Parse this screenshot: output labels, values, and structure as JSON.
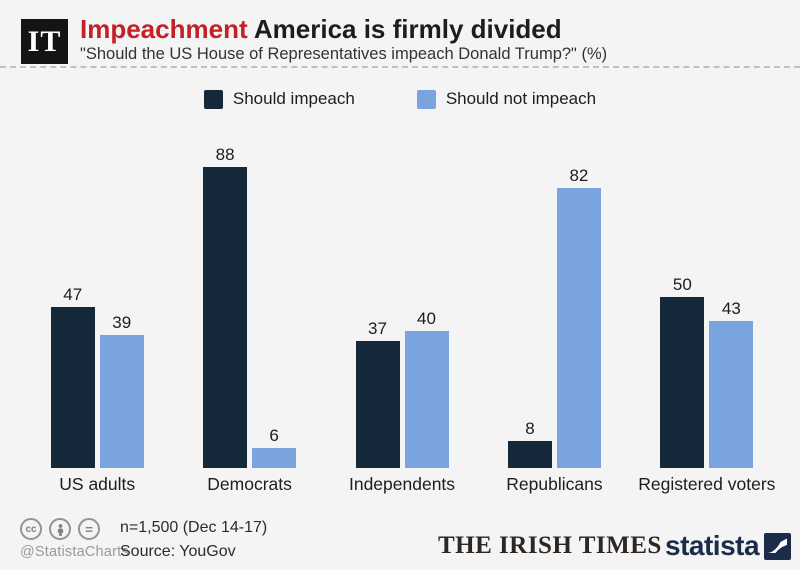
{
  "header": {
    "logo_text": "IT",
    "title_highlight": "Impeachment",
    "title_rest": " America is firmly divided",
    "subtitle": "\"Should the US House of Representatives impeach Donald Trump?\" (%)"
  },
  "chart_data": {
    "type": "bar",
    "categories": [
      "US adults",
      "Democrats",
      "Independents",
      "Republicans",
      "Registered voters"
    ],
    "series": [
      {
        "name": "Should impeach",
        "color": "#14283a",
        "values": [
          47,
          88,
          37,
          8,
          50
        ]
      },
      {
        "name": "Should not impeach",
        "color": "#79a4dd",
        "values": [
          39,
          6,
          40,
          82,
          43
        ]
      }
    ],
    "value_labels": true,
    "ylim": [
      0,
      100
    ],
    "axes": "hidden",
    "grid": false,
    "legend_position": "top-center"
  },
  "footer": {
    "license_icons": [
      "cc-icon",
      "attribution-person-icon",
      "no-derivatives-icon"
    ],
    "handle": "@StatistaCharts",
    "sample": "n=1,500 (Dec 14-17)",
    "source": "Source: YouGov",
    "publisher": "THE IRISH TIMES",
    "brand": "statista"
  },
  "colors": {
    "background": "#f4f4f5",
    "title_highlight": "#c32127",
    "title_text": "#1d1d1b",
    "bar_dark": "#14283a",
    "bar_light": "#79a4dd",
    "statista_navy": "#1b2c48"
  }
}
